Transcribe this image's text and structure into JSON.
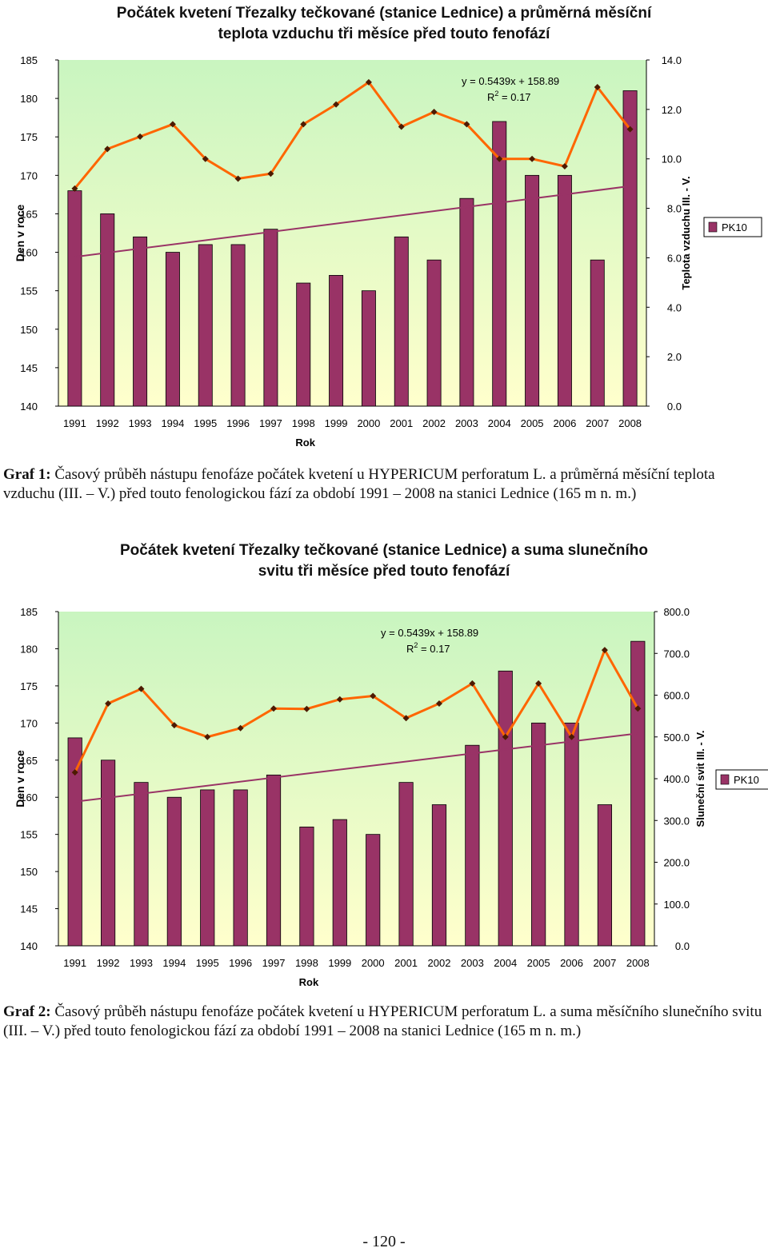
{
  "colors": {
    "plot_background": "#ffffcc",
    "plot_gradient_top": "#c9f5c0",
    "bar": "#993366",
    "line": "#ff6600",
    "marker": "#4d1a00",
    "trend": "#993366"
  },
  "chart_data": [
    {
      "type": "bar",
      "title_line1": "Počátek kvetení Třezalky tečkované (stanice Lednice) a průměrná měsíční",
      "title_line2": "teplota vzduchu tři měsíce před touto fenofází",
      "xlabel": "Rok",
      "ylabel": "Den v roce",
      "y2label": "Teplota vzduchu III. - V.",
      "legend": "PK10",
      "categories": [
        "1991",
        "1992",
        "1993",
        "1994",
        "1995",
        "1996",
        "1997",
        "1998",
        "1999",
        "2000",
        "2001",
        "2002",
        "2003",
        "2004",
        "2005",
        "2006",
        "2007",
        "2008"
      ],
      "series": [
        {
          "name": "PK10",
          "kind": "bar",
          "axis": "left",
          "values": [
            168,
            165,
            162,
            160,
            161,
            161,
            163,
            156,
            157,
            155,
            162,
            159,
            167,
            177,
            170,
            170,
            159,
            181
          ]
        },
        {
          "name": "Teplota vzduchu III. - V.",
          "kind": "line",
          "axis": "right",
          "values": [
            8.8,
            10.4,
            10.9,
            11.4,
            10.0,
            9.2,
            9.4,
            11.4,
            12.2,
            13.1,
            11.3,
            11.9,
            11.4,
            10.0,
            10.0,
            9.7,
            12.9,
            11.2
          ]
        }
      ],
      "trendline": {
        "from": 159.4,
        "to": 168.6
      },
      "ylim": [
        140,
        185
      ],
      "yticks": [
        140,
        145,
        150,
        155,
        160,
        165,
        170,
        175,
        180,
        185
      ],
      "y2lim": [
        0,
        14
      ],
      "y2ticks": [
        "0.0",
        "2.0",
        "4.0",
        "6.0",
        "8.0",
        "10.0",
        "12.0",
        "14.0"
      ],
      "y2tick_values": [
        0,
        2,
        4,
        6,
        8,
        10,
        12,
        14
      ],
      "annotation_eq": "y = 0.5439x + 158.89",
      "annotation_r2_prefix": "R",
      "annotation_r2_sup": "2",
      "annotation_r2_suffix": " = 0.17",
      "caption_label": "Graf 1:",
      "caption_text": " Časový průběh nástupu fenofáze počátek kvetení u HYPERICUM perforatum L. a průměrná měsíční teplota vzduchu (III. – V.) před touto fenologickou fází za období 1991 – 2008 na stanici Lednice (165 m n. m.)"
    },
    {
      "type": "bar",
      "title_line1": "Počátek kvetení Třezalky tečkované (stanice Lednice) a suma slunečního",
      "title_line2": "svitu tři měsíce před touto fenofází",
      "xlabel": "Rok",
      "ylabel": "Den v roce",
      "y2label": "Sluneční svit III. - V.",
      "legend": "PK10",
      "categories": [
        "1991",
        "1992",
        "1993",
        "1994",
        "1995",
        "1996",
        "1997",
        "1998",
        "1999",
        "2000",
        "2001",
        "2002",
        "2003",
        "2004",
        "2005",
        "2006",
        "2007",
        "2008"
      ],
      "series": [
        {
          "name": "PK10",
          "kind": "bar",
          "axis": "left",
          "values": [
            168,
            165,
            162,
            160,
            161,
            161,
            163,
            156,
            157,
            155,
            162,
            159,
            167,
            177,
            170,
            170,
            159,
            181
          ]
        },
        {
          "name": "Sluneční svit III. - V.",
          "kind": "line",
          "axis": "right",
          "values": [
            415,
            580,
            615,
            528,
            500,
            521,
            568,
            567,
            590,
            598,
            545,
            580,
            628,
            500,
            628,
            500,
            708,
            568
          ]
        }
      ],
      "trendline": {
        "from": 159.4,
        "to": 168.6
      },
      "ylim": [
        140,
        185
      ],
      "yticks": [
        140,
        145,
        150,
        155,
        160,
        165,
        170,
        175,
        180,
        185
      ],
      "y2lim": [
        0,
        800
      ],
      "y2ticks": [
        "0.0",
        "100.0",
        "200.0",
        "300.0",
        "400.0",
        "500.0",
        "600.0",
        "700.0",
        "800.0"
      ],
      "y2tick_values": [
        0,
        100,
        200,
        300,
        400,
        500,
        600,
        700,
        800
      ],
      "annotation_eq": "y = 0.5439x + 158.89",
      "annotation_r2_prefix": "R",
      "annotation_r2_sup": "2",
      "annotation_r2_suffix": " = 0.17",
      "caption_label": "Graf 2:",
      "caption_text": " Časový průběh nástupu fenofáze počátek kvetení u HYPERICUM perforatum L. a suma měsíčního slunečního svitu (III. – V.) před touto fenologickou fází za období 1991 – 2008 na stanici Lednice (165 m n. m.)"
    }
  ],
  "page_number": "- 120 -"
}
